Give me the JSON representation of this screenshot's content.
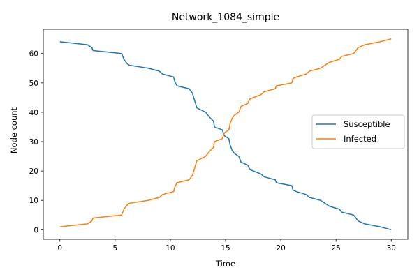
{
  "chart_data": {
    "type": "line",
    "title": "Network_1084_simple",
    "xlabel": "Time",
    "ylabel": "Node count",
    "xlim": [
      -1.5,
      31.5
    ],
    "ylim": [
      -3.25,
      68.25
    ],
    "xticks": [
      0,
      5,
      10,
      15,
      20,
      25,
      30
    ],
    "yticks": [
      0,
      10,
      20,
      30,
      40,
      50,
      60
    ],
    "grid": false,
    "legend_position": "center-right",
    "series": [
      {
        "name": "Susceptible",
        "color": "#1f77b4",
        "points": [
          [
            0,
            64
          ],
          [
            2.5,
            63
          ],
          [
            2.9,
            62
          ],
          [
            3.0,
            61
          ],
          [
            5.6,
            60
          ],
          [
            5.8,
            58
          ],
          [
            6.1,
            56.5
          ],
          [
            6.3,
            56
          ],
          [
            8.0,
            55
          ],
          [
            9.0,
            54
          ],
          [
            9.3,
            53
          ],
          [
            10.3,
            52
          ],
          [
            10.4,
            50.5
          ],
          [
            10.6,
            49
          ],
          [
            11.7,
            48
          ],
          [
            12.0,
            46.5
          ],
          [
            12.2,
            44
          ],
          [
            12.4,
            41.5
          ],
          [
            13.2,
            40
          ],
          [
            13.5,
            38.5
          ],
          [
            13.9,
            37
          ],
          [
            14.0,
            35
          ],
          [
            14.7,
            34
          ],
          [
            14.9,
            32
          ],
          [
            15.3,
            31
          ],
          [
            15.4,
            29
          ],
          [
            15.6,
            27
          ],
          [
            15.8,
            26
          ],
          [
            16.2,
            25
          ],
          [
            16.4,
            23
          ],
          [
            17.0,
            22
          ],
          [
            17.2,
            20.5
          ],
          [
            17.5,
            20
          ],
          [
            18.2,
            19
          ],
          [
            18.5,
            18
          ],
          [
            19.5,
            17
          ],
          [
            19.6,
            16
          ],
          [
            21.0,
            15
          ],
          [
            21.1,
            13.5
          ],
          [
            21.4,
            13
          ],
          [
            22.3,
            12
          ],
          [
            22.6,
            11
          ],
          [
            23.6,
            10
          ],
          [
            24.4,
            8
          ],
          [
            25.3,
            7
          ],
          [
            25.5,
            6
          ],
          [
            26.6,
            5
          ],
          [
            27.0,
            3
          ],
          [
            27.6,
            2
          ],
          [
            29.0,
            1
          ],
          [
            30.0,
            0
          ]
        ]
      },
      {
        "name": "Infected",
        "color": "#ff7f0e",
        "points": [
          [
            0,
            1
          ],
          [
            2.5,
            2
          ],
          [
            2.9,
            3
          ],
          [
            3.0,
            4
          ],
          [
            5.6,
            5
          ],
          [
            5.8,
            7
          ],
          [
            6.1,
            8.5
          ],
          [
            6.3,
            9
          ],
          [
            8.0,
            10
          ],
          [
            9.0,
            11
          ],
          [
            9.3,
            12
          ],
          [
            10.3,
            13
          ],
          [
            10.4,
            14.5
          ],
          [
            10.6,
            16
          ],
          [
            11.7,
            17
          ],
          [
            12.0,
            18.5
          ],
          [
            12.2,
            21
          ],
          [
            12.4,
            23.5
          ],
          [
            13.2,
            25
          ],
          [
            13.5,
            26.5
          ],
          [
            13.9,
            28
          ],
          [
            14.0,
            30
          ],
          [
            14.7,
            31
          ],
          [
            14.9,
            33
          ],
          [
            15.3,
            34
          ],
          [
            15.4,
            36
          ],
          [
            15.6,
            38
          ],
          [
            15.8,
            39
          ],
          [
            16.2,
            40
          ],
          [
            16.4,
            42
          ],
          [
            17.0,
            43
          ],
          [
            17.2,
            44.5
          ],
          [
            17.5,
            45
          ],
          [
            18.2,
            46
          ],
          [
            18.5,
            47
          ],
          [
            19.5,
            48
          ],
          [
            19.6,
            49
          ],
          [
            21.0,
            50
          ],
          [
            21.1,
            51.5
          ],
          [
            21.4,
            52
          ],
          [
            22.3,
            53
          ],
          [
            22.6,
            54
          ],
          [
            23.6,
            55
          ],
          [
            24.4,
            57
          ],
          [
            25.3,
            58
          ],
          [
            25.5,
            59
          ],
          [
            26.6,
            60
          ],
          [
            27.0,
            62
          ],
          [
            27.6,
            63
          ],
          [
            29.0,
            64
          ],
          [
            30.0,
            65
          ]
        ]
      }
    ]
  }
}
